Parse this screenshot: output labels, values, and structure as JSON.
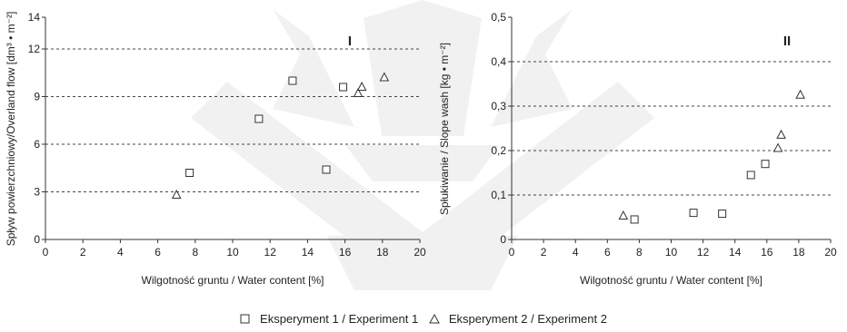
{
  "chart_data": [
    {
      "type": "scatter",
      "panel_label": "I",
      "xlabel": "Wilgotność gruntu / Water content [%]",
      "ylabel": "Spływ powierzchniowy/Overland flow [dm³ • m⁻²]",
      "xlim": [
        0,
        20
      ],
      "ylim": [
        0,
        14
      ],
      "xticks": [
        "0",
        "2",
        "4",
        "6",
        "8",
        "10",
        "12",
        "14",
        "16",
        "18",
        "20"
      ],
      "yticks": [
        "0",
        "3",
        "6",
        "9",
        "12",
        "14"
      ],
      "grid": "dashed horizontal at 3, 6, 9, 12",
      "series": [
        {
          "marker": "square",
          "points": [
            [
              7.7,
              4.2
            ],
            [
              11.4,
              7.6
            ],
            [
              13.2,
              10.0
            ],
            [
              15.0,
              4.4
            ],
            [
              15.9,
              9.6
            ]
          ]
        },
        {
          "marker": "triangle",
          "points": [
            [
              7.0,
              2.8
            ],
            [
              16.7,
              9.2
            ],
            [
              16.9,
              9.6
            ],
            [
              18.1,
              10.2
            ]
          ]
        }
      ]
    },
    {
      "type": "scatter",
      "panel_label": "II",
      "xlabel": "Wilgotność gruntu / Water content [%]",
      "ylabel": "Spłukiwanie / Slope wash [kg • m⁻²]",
      "xlim": [
        0,
        20
      ],
      "ylim": [
        0,
        0.5
      ],
      "xticks": [
        "0",
        "2",
        "4",
        "6",
        "8",
        "10",
        "12",
        "14",
        "16",
        "18",
        "20"
      ],
      "yticks": [
        "0",
        "0,1",
        "0,2",
        "0,3",
        "0,4",
        "0,5"
      ],
      "grid": "dashed horizontal at 0,1, 0,2, 0,3, 0,4",
      "series": [
        {
          "marker": "square",
          "points": [
            [
              7.7,
              0.045
            ],
            [
              11.4,
              0.06
            ],
            [
              13.2,
              0.058
            ],
            [
              15.0,
              0.145
            ],
            [
              15.9,
              0.17
            ]
          ]
        },
        {
          "marker": "triangle",
          "points": [
            [
              7.0,
              0.053
            ],
            [
              16.7,
              0.205
            ],
            [
              16.9,
              0.235
            ],
            [
              18.1,
              0.325
            ]
          ]
        }
      ]
    }
  ],
  "legend": [
    {
      "marker": "square",
      "label": "Eksperyment 1 / Experiment 1"
    },
    {
      "marker": "triangle",
      "label": "Eksperyment 2 / Experiment 2"
    }
  ]
}
